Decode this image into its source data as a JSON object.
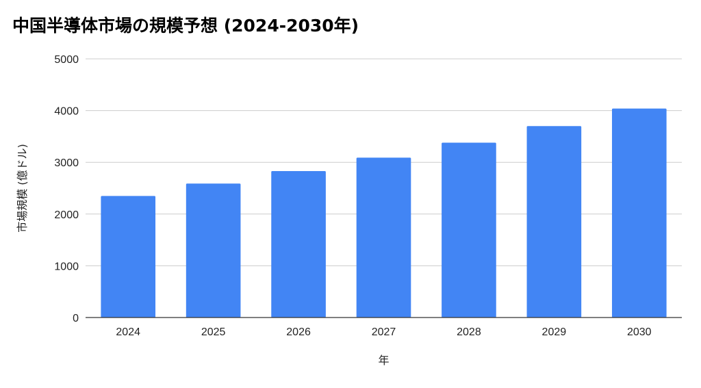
{
  "chart_data": {
    "type": "bar",
    "title": "中国半導体市場の規模予想 (2024-2030年)",
    "xlabel": "年",
    "ylabel": "市場規模 (億ドル)",
    "categories": [
      "2024",
      "2025",
      "2026",
      "2027",
      "2028",
      "2029",
      "2030"
    ],
    "values": [
      2350,
      2590,
      2830,
      3090,
      3380,
      3700,
      4040
    ],
    "ylim": [
      0,
      5000
    ],
    "yticks": [
      "0",
      "1000",
      "2000",
      "3000",
      "4000",
      "5000"
    ],
    "grid": true,
    "legend": "none",
    "bar_color": "#4285F4",
    "grid_color": "#cccccc",
    "axis_color": "#333333"
  }
}
